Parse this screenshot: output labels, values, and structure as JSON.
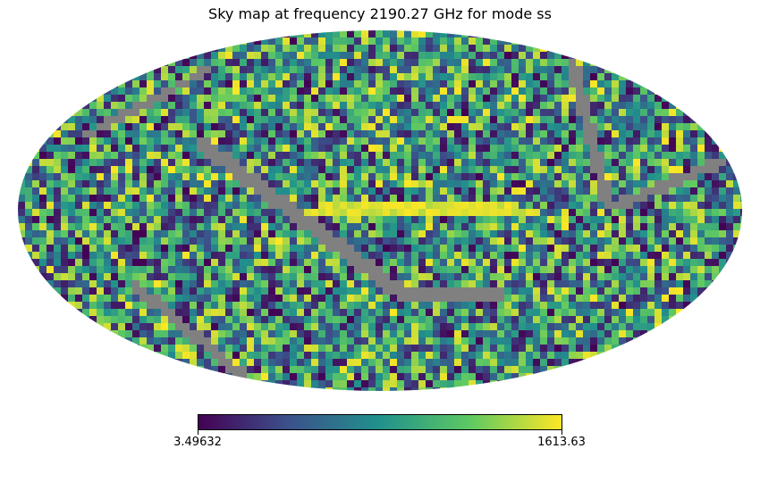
{
  "chart_data": {
    "type": "heatmap",
    "title": "Sky map at frequency 2190.27 GHz for mode ss",
    "projection": "mollweide",
    "colormap": "viridis",
    "colorbar": {
      "min": 3.49632,
      "max": 1613.63,
      "tick_labels": [
        "3.49632",
        "1613.63"
      ]
    },
    "masked_color": "#808080",
    "colors": [
      "#440154",
      "#3b528b",
      "#21918c",
      "#5ec962",
      "#fde725"
    ]
  }
}
